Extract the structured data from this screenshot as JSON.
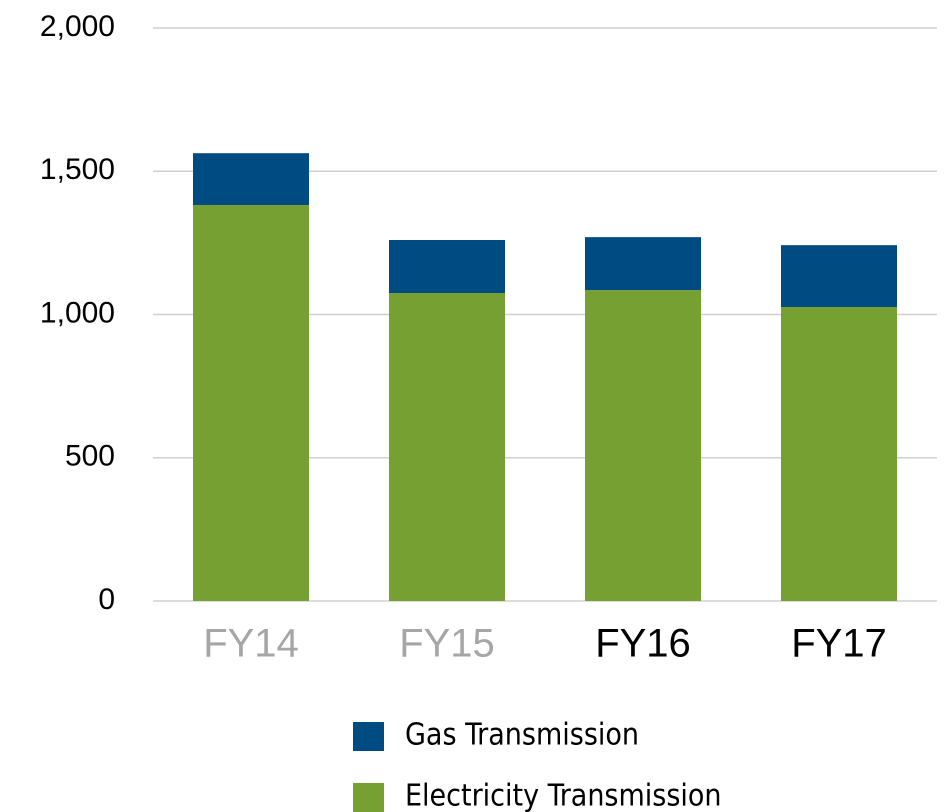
{
  "chart_data": {
    "type": "stacked_bar",
    "categories": [
      "FY14",
      "FY15",
      "FY16",
      "FY17"
    ],
    "category_colors": [
      "#a6a6a6",
      "#a6a6a6",
      "#000000",
      "#000000"
    ],
    "series": [
      {
        "name": "Electricity Transmission",
        "color": "#77a033",
        "values": [
          1382,
          1075,
          1085,
          1026
        ]
      },
      {
        "name": "Gas Transmission",
        "color": "#004b82",
        "values": [
          181,
          185,
          185,
          216
        ]
      }
    ],
    "ylim": [
      0,
      2000
    ],
    "yticks": [
      0,
      500,
      {
        "value": 1000,
        "label": "1,000"
      },
      {
        "value": 1500,
        "label": "1,500"
      },
      {
        "value": 2000,
        "label": "2,000"
      }
    ],
    "grid": true
  }
}
